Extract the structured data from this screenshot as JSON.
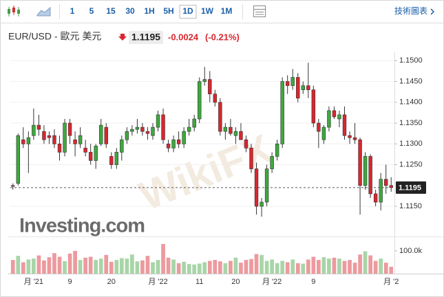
{
  "toolbar": {
    "intervals": [
      "1",
      "5",
      "15",
      "30",
      "1H",
      "5H",
      "1D",
      "1W",
      "1M"
    ],
    "selected": "1D",
    "link": "技術圖表"
  },
  "header": {
    "symbol": "EUR/USD - 歐元 美元",
    "price": "1.1195",
    "change": "-0.0024",
    "change_pct": "(-0.21%)"
  },
  "watermarks": [
    "Investing.com",
    "WikiFX"
  ],
  "chart_data": {
    "type": "candlestick",
    "categories": [
      null,
      null,
      null,
      null,
      "月 '21",
      null,
      null,
      null,
      null,
      null,
      null,
      "9",
      null,
      null,
      null,
      null,
      null,
      null,
      null,
      "20",
      null,
      null,
      null,
      null,
      null,
      null,
      null,
      null,
      "月 '22",
      null,
      null,
      null,
      null,
      null,
      null,
      null,
      "11",
      null,
      null,
      null,
      null,
      null,
      null,
      "20",
      null,
      null,
      null,
      null,
      null,
      null,
      "月 '22",
      null,
      null,
      null,
      null,
      null,
      null,
      null,
      "9",
      null,
      null,
      null,
      null,
      null,
      null,
      null,
      null,
      null,
      null,
      null,
      null,
      null,
      null,
      "月 '2"
    ],
    "open": [
      1.12,
      1.1205,
      1.131,
      1.13,
      1.132,
      1.1345,
      1.133,
      1.132,
      1.132,
      1.13,
      1.128,
      1.135,
      1.131,
      1.13,
      1.129,
      1.128,
      1.126,
      1.13,
      1.134,
      1.127,
      1.125,
      1.128,
      1.131,
      1.133,
      1.1335,
      1.134,
      1.133,
      1.132,
      1.134,
      1.137,
      1.13,
      1.129,
      1.131,
      1.13,
      1.133,
      1.134,
      1.136,
      1.145,
      1.1455,
      1.142,
      1.14,
      1.133,
      1.134,
      1.132,
      1.133,
      1.131,
      1.129,
      1.124,
      1.115,
      1.116,
      1.124,
      1.127,
      1.13,
      1.145,
      1.144,
      1.146,
      1.143,
      1.144,
      1.143,
      1.135,
      1.131,
      1.134,
      1.138,
      1.136,
      1.137,
      1.132,
      1.1315,
      1.131,
      1.12,
      1.127,
      1.118,
      1.116,
      1.1215,
      1.12
    ],
    "high": [
      1.1205,
      1.1325,
      1.134,
      1.133,
      1.1385,
      1.137,
      1.1345,
      1.133,
      1.1335,
      1.132,
      1.136,
      1.136,
      1.133,
      1.134,
      1.131,
      1.13,
      1.13,
      1.136,
      1.135,
      1.128,
      1.129,
      1.132,
      1.134,
      1.1345,
      1.136,
      1.135,
      1.134,
      1.135,
      1.138,
      1.1385,
      1.131,
      1.132,
      1.133,
      1.134,
      1.136,
      1.137,
      1.146,
      1.1485,
      1.1475,
      1.143,
      1.141,
      1.135,
      1.136,
      1.134,
      1.135,
      1.132,
      1.13,
      1.1255,
      1.117,
      1.125,
      1.128,
      1.131,
      1.146,
      1.1465,
      1.148,
      1.147,
      1.145,
      1.1495,
      1.144,
      1.136,
      1.1345,
      1.139,
      1.139,
      1.138,
      1.139,
      1.133,
      1.135,
      1.1315,
      1.128,
      1.1275,
      1.119,
      1.123,
      1.125,
      1.122
    ],
    "low": [
      1.119,
      1.12,
      1.129,
      1.123,
      1.131,
      1.132,
      1.13,
      1.13,
      1.129,
      1.126,
      1.127,
      1.13,
      1.127,
      1.129,
      1.127,
      1.125,
      1.124,
      1.1295,
      1.129,
      1.124,
      1.124,
      1.126,
      1.13,
      1.132,
      1.1325,
      1.132,
      1.131,
      1.131,
      1.133,
      1.13,
      1.128,
      1.128,
      1.129,
      1.129,
      1.132,
      1.133,
      1.135,
      1.144,
      1.14,
      1.139,
      1.132,
      1.131,
      1.132,
      1.13,
      1.131,
      1.128,
      1.123,
      1.113,
      1.1125,
      1.115,
      1.123,
      1.126,
      1.129,
      1.142,
      1.143,
      1.14,
      1.142,
      1.141,
      1.134,
      1.129,
      1.13,
      1.133,
      1.136,
      1.134,
      1.131,
      1.13,
      1.13,
      1.113,
      1.119,
      1.117,
      1.115,
      1.114,
      1.118,
      1.1185
    ],
    "close": [
      1.1198,
      1.132,
      1.13,
      1.1315,
      1.1345,
      1.1335,
      1.131,
      1.1315,
      1.13,
      1.128,
      1.135,
      1.132,
      1.13,
      1.132,
      1.128,
      1.126,
      1.1295,
      1.1345,
      1.13,
      1.125,
      1.128,
      1.131,
      1.133,
      1.1335,
      1.134,
      1.133,
      1.1325,
      1.134,
      1.137,
      1.131,
      1.129,
      1.131,
      1.13,
      1.133,
      1.134,
      1.136,
      1.145,
      1.1455,
      1.142,
      1.14,
      1.133,
      1.134,
      1.1325,
      1.133,
      1.131,
      1.129,
      1.124,
      1.115,
      1.116,
      1.124,
      1.127,
      1.13,
      1.145,
      1.144,
      1.146,
      1.141,
      1.144,
      1.143,
      1.135,
      1.133,
      1.134,
      1.138,
      1.1365,
      1.137,
      1.132,
      1.1315,
      1.131,
      1.12,
      1.127,
      1.118,
      1.116,
      1.1215,
      1.12,
      1.1195
    ],
    "volume": [
      60000,
      78000,
      50000,
      62000,
      66000,
      80000,
      58000,
      72000,
      90000,
      74000,
      55000,
      88000,
      100000,
      60000,
      70000,
      74000,
      60000,
      66000,
      82000,
      52000,
      60000,
      68000,
      66000,
      84000,
      54000,
      58000,
      78000,
      50000,
      60000,
      130000,
      70000,
      62000,
      46000,
      52000,
      42000,
      40000,
      44000,
      50000,
      56000,
      60000,
      54000,
      46000,
      56000,
      70000,
      48000,
      60000,
      64000,
      86000,
      82000,
      56000,
      62000,
      46000,
      56000,
      50000,
      62000,
      46000,
      44000,
      62000,
      74000,
      60000,
      72000,
      66000,
      70000,
      66000,
      56000,
      60000,
      48000,
      84000,
      98000,
      80000,
      56000,
      66000,
      48000,
      30000
    ],
    "up_color": "#3ea83e",
    "down_color": "#d9262f",
    "up_volume_color": "#a8d5a8",
    "down_volume_color": "#ec9a9e",
    "ylim": [
      1.1084,
      1.1517
    ],
    "yticks": [
      {
        "value": 1.15,
        "label": "1.1500"
      },
      {
        "value": 1.145,
        "label": "1.1450"
      },
      {
        "value": 1.14,
        "label": "1.1400"
      },
      {
        "value": 1.135,
        "label": "1.1350"
      },
      {
        "value": 1.13,
        "label": "1.1300"
      },
      {
        "value": 1.125,
        "label": "1.1250"
      },
      {
        "value": 1.115,
        "label": "1.1150"
      }
    ],
    "last_price": {
      "value": 1.1195,
      "label": "1.1195"
    },
    "volume_lim": [
      0,
      160000
    ],
    "volume_ticks": [
      {
        "value": 100000,
        "label": "100.0k"
      }
    ]
  }
}
